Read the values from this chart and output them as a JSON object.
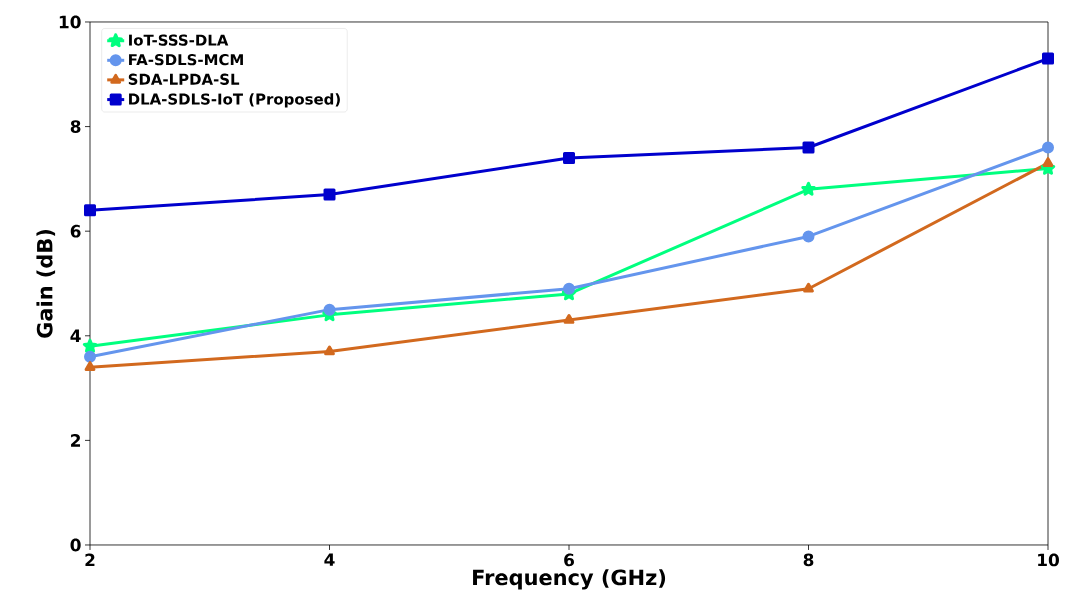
{
  "chart_data": {
    "type": "line",
    "xlabel": "Frequency (GHz)",
    "ylabel": "Gain (dB)",
    "x": [
      2,
      4,
      6,
      8,
      10
    ],
    "series": [
      {
        "name": "IoT-SSS-DLA",
        "color": "#00ff7f",
        "marker": "star",
        "values": [
          3.8,
          4.4,
          4.8,
          6.8,
          7.2
        ]
      },
      {
        "name": "FA-SDLS-MCM",
        "color": "#6495ed",
        "marker": "circle",
        "values": [
          3.6,
          4.5,
          4.9,
          5.9,
          7.6
        ]
      },
      {
        "name": "SDA-LPDA-SL",
        "color": "#d2691e",
        "marker": "triangle",
        "values": [
          3.4,
          3.7,
          4.3,
          4.9,
          7.3
        ]
      },
      {
        "name": "DLA-SDLS-IoT (Proposed)",
        "color": "#0000cd",
        "marker": "square",
        "values": [
          6.4,
          6.7,
          7.4,
          7.6,
          9.3
        ]
      }
    ],
    "xlim": [
      2,
      10
    ],
    "ylim": [
      0,
      10
    ],
    "xticks": [
      2,
      4,
      6,
      8,
      10
    ],
    "yticks": [
      0,
      2,
      4,
      6,
      8,
      10
    ],
    "grid": false,
    "legend": "top left",
    "line_style": "solid"
  }
}
